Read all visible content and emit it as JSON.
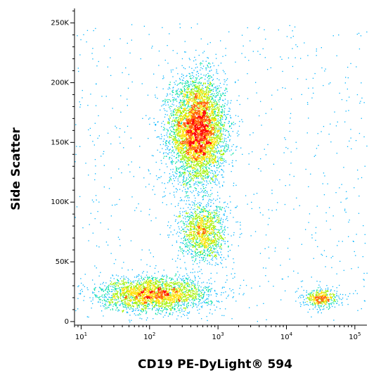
{
  "chart_data": {
    "type": "scatter",
    "style": "density dot plot (flow cytometry)",
    "xlabel": "CD19 PE-DyLight® 594",
    "ylabel": "Side Scatter",
    "x_scale": "log",
    "x_ticks": [
      {
        "value": 10,
        "base": "10",
        "exp": "1"
      },
      {
        "value": 100,
        "base": "10",
        "exp": "2"
      },
      {
        "value": 1000,
        "base": "10",
        "exp": "3"
      },
      {
        "value": 10000,
        "base": "10",
        "exp": "4"
      },
      {
        "value": 100000,
        "base": "10",
        "exp": "5"
      }
    ],
    "y_ticks": [
      {
        "value": 0,
        "label": "0"
      },
      {
        "value": 50000,
        "label": "50K"
      },
      {
        "value": 100000,
        "label": "100K"
      },
      {
        "value": 150000,
        "label": "150K"
      },
      {
        "value": 200000,
        "label": "200K"
      },
      {
        "value": 250000,
        "label": "250K"
      }
    ],
    "xlim": [
      8,
      150000
    ],
    "ylim": [
      -3000,
      262144
    ],
    "grid": false,
    "legend": "none",
    "populations": [
      {
        "center": [
          500,
          160000
        ],
        "spread_log10_x": 0.2,
        "spread_y": 22000,
        "count": 5200
      },
      {
        "center": [
          600,
          75000
        ],
        "spread_log10_x": 0.17,
        "spread_y": 12000,
        "count": 1300
      },
      {
        "center": [
          120,
          23000
        ],
        "spread_log10_x": 0.4,
        "spread_y": 7000,
        "count": 2600
      },
      {
        "center": [
          32000,
          20000
        ],
        "spread_log10_x": 0.12,
        "spread_y": 4000,
        "count": 450
      }
    ],
    "density_colors": [
      "#0000ff",
      "#00b4ff",
      "#00e0a0",
      "#a0f000",
      "#ffe000",
      "#ff6000",
      "#ff0000"
    ]
  }
}
